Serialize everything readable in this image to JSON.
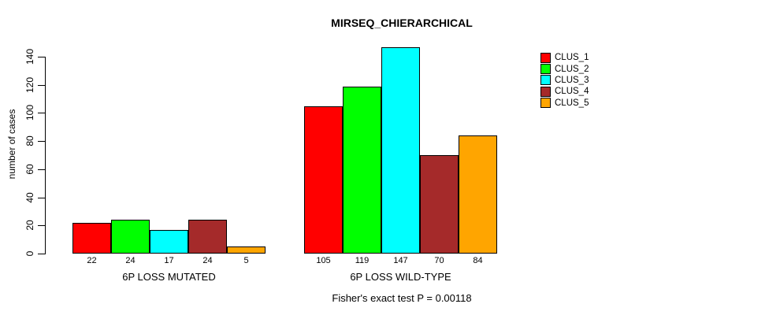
{
  "chart_data": {
    "type": "bar",
    "title": "MIRSEQ_CHIERARCHICAL",
    "ylabel": "number of cases",
    "xlabel": "",
    "categories": [
      "6P LOSS MUTATED",
      "6P LOSS WILD-TYPE"
    ],
    "series": [
      {
        "name": "CLUS_1",
        "color": "#FF0000",
        "values": [
          22,
          105
        ]
      },
      {
        "name": "CLUS_2",
        "color": "#00FF00",
        "values": [
          24,
          119
        ]
      },
      {
        "name": "CLUS_3",
        "color": "#00FFFF",
        "values": [
          17,
          147
        ]
      },
      {
        "name": "CLUS_4",
        "color": "#A52A2A",
        "values": [
          24,
          70
        ]
      },
      {
        "name": "CLUS_5",
        "color": "#FFA500",
        "values": [
          5,
          84
        ]
      }
    ],
    "yticks": [
      0,
      20,
      40,
      60,
      80,
      100,
      120,
      140
    ],
    "ylim": [
      0,
      147
    ],
    "bar_labels_shown": true,
    "grid": false,
    "legend_position": "right",
    "annotation": "Fisher's exact test P = 0.00118"
  }
}
